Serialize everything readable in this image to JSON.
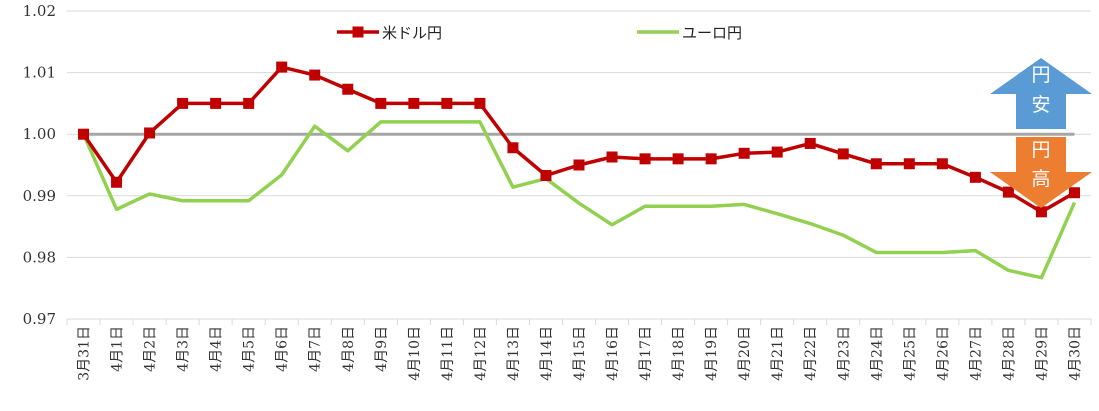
{
  "chart_data": {
    "type": "line",
    "title": "",
    "xlabel": "",
    "ylabel": "",
    "ylim": [
      0.97,
      1.02
    ],
    "yticks": [
      "0.97",
      "0.98",
      "0.99",
      "1.00",
      "1.01",
      "1.02"
    ],
    "grid": true,
    "legend_position": "top",
    "categories": [
      "3月31日",
      "4月1日",
      "4月2日",
      "4月3日",
      "4月4日",
      "4月5日",
      "4月6日",
      "4月7日",
      "4月8日",
      "4月9日",
      "4月10日",
      "4月11日",
      "4月12日",
      "4月13日",
      "4月14日",
      "4月15日",
      "4月16日",
      "4月17日",
      "4月18日",
      "4月19日",
      "4月20日",
      "4月21日",
      "4月22日",
      "4月23日",
      "4月24日",
      "4月25日",
      "4月26日",
      "4月27日",
      "4月28日",
      "4月29日",
      "4月30日"
    ],
    "series": [
      {
        "name": "米ドル円",
        "color": "#c00000",
        "marker": "square",
        "values": [
          1.0,
          0.9922,
          1.0002,
          1.005,
          1.005,
          1.005,
          1.0109,
          1.0096,
          1.0073,
          1.005,
          1.005,
          1.005,
          1.005,
          0.9978,
          0.9933,
          0.995,
          0.9963,
          0.996,
          0.996,
          0.996,
          0.9969,
          0.9971,
          0.9985,
          0.9968,
          0.9952,
          0.9952,
          0.9952,
          0.993,
          0.9906,
          0.9874,
          0.9905
        ]
      },
      {
        "name": "ユーロ円",
        "color": "#92d050",
        "marker": "none",
        "values": [
          1.0,
          0.9878,
          0.9903,
          0.9892,
          0.9892,
          0.9892,
          0.9934,
          1.0013,
          0.9973,
          1.002,
          1.002,
          1.002,
          1.002,
          0.9914,
          0.9928,
          0.9888,
          0.9853,
          0.9883,
          0.9883,
          0.9883,
          0.9886,
          0.9871,
          0.9855,
          0.9836,
          0.9808,
          0.9808,
          0.9808,
          0.9811,
          0.9779,
          0.9767,
          0.9889
        ]
      }
    ],
    "reference_line": {
      "value": 1.0,
      "color": "#a6a6a6"
    },
    "annotations": [
      {
        "type": "arrow-up",
        "text": [
          "円",
          "安"
        ],
        "color": "#5b9bd5"
      },
      {
        "type": "arrow-down",
        "text": [
          "円",
          "高"
        ],
        "color": "#ed7d31"
      }
    ]
  }
}
